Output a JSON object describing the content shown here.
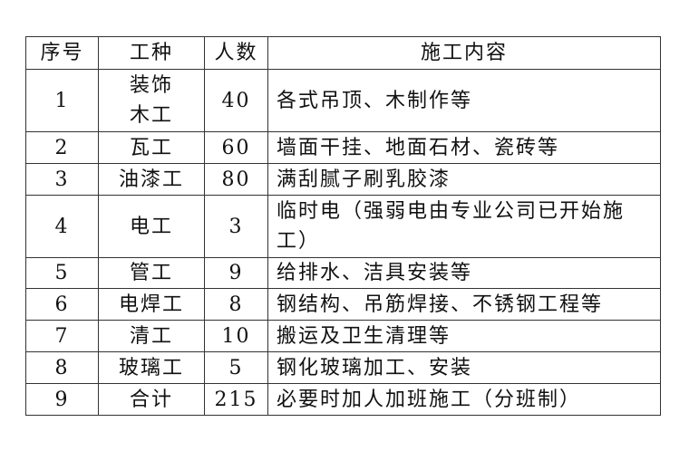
{
  "headers": [
    "序号",
    "工种",
    "人数",
    "施工内容"
  ],
  "rows": [
    {
      "no": "1",
      "trade": "装饰\n木工",
      "count": "40",
      "content": "各式吊顶、木制作等"
    },
    {
      "no": "2",
      "trade": "瓦工",
      "count": "60",
      "content": "墙面干挂、地面石材、瓷砖等"
    },
    {
      "no": "3",
      "trade": "油漆工",
      "count": "80",
      "content": "满刮腻子刷乳胶漆"
    },
    {
      "no": "4",
      "trade": "电工",
      "count": "3",
      "content": "临时电（强弱电由专业公司已开始施\n工）"
    },
    {
      "no": "5",
      "trade": "管工",
      "count": "9",
      "content": "给排水、洁具安装等"
    },
    {
      "no": "6",
      "trade": "电焊工",
      "count": "8",
      "content": "钢结构、吊筋焊接、不锈钢工程等"
    },
    {
      "no": "7",
      "trade": "清工",
      "count": "10",
      "content": "搬运及卫生清理等"
    },
    {
      "no": "8",
      "trade": "玻璃工",
      "count": "5",
      "content": "钢化玻璃加工、安装"
    },
    {
      "no": "9",
      "trade": "合计",
      "count": "215",
      "content": "必要时加人加班施工（分班制）"
    }
  ]
}
